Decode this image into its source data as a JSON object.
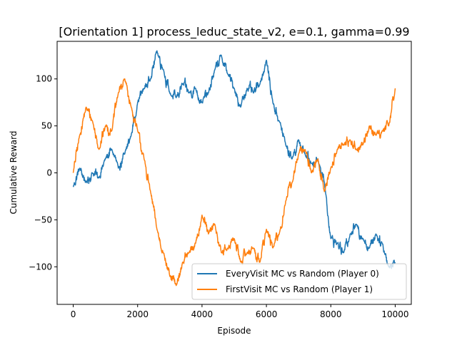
{
  "chart_data": {
    "type": "line",
    "title": "[Orientation 1] process_leduc_state_v2, e=0.1, gamma=0.99",
    "xlabel": "Episode",
    "ylabel": "Cumulative Reward",
    "xlim": [
      -500,
      10500
    ],
    "ylim": [
      -140,
      140
    ],
    "xticks": [
      0,
      2000,
      4000,
      6000,
      8000,
      10000
    ],
    "yticks": [
      -100,
      -50,
      0,
      50,
      100
    ],
    "xtick_labels": [
      "0",
      "2000",
      "4000",
      "6000",
      "8000",
      "10000"
    ],
    "ytick_labels": [
      "−100",
      "−50",
      "0",
      "50",
      "100"
    ],
    "grid": false,
    "legend_position": "lower-right",
    "series": [
      {
        "name": "EveryVisit MC vs Random (Player 0)",
        "color": "#1f77b4",
        "x": [
          0,
          200,
          400,
          600,
          800,
          1000,
          1200,
          1400,
          1600,
          1800,
          2000,
          2200,
          2400,
          2600,
          2800,
          3000,
          3200,
          3400,
          3600,
          3800,
          4000,
          4200,
          4400,
          4600,
          4800,
          5000,
          5200,
          5400,
          5600,
          5800,
          6000,
          6200,
          6400,
          6600,
          6800,
          7000,
          7200,
          7400,
          7600,
          7800,
          8000,
          8200,
          8400,
          8600,
          8800,
          9000,
          9200,
          9400,
          9600,
          9800,
          10000
        ],
        "y": [
          -15,
          5,
          -10,
          0,
          -5,
          15,
          25,
          5,
          20,
          40,
          75,
          90,
          100,
          130,
          110,
          85,
          80,
          95,
          85,
          90,
          75,
          85,
          110,
          125,
          105,
          90,
          70,
          90,
          85,
          95,
          120,
          75,
          55,
          30,
          15,
          35,
          20,
          10,
          15,
          -10,
          -70,
          -75,
          -85,
          -65,
          -55,
          -70,
          -80,
          -65,
          -75,
          -100,
          -95
        ]
      },
      {
        "name": "FirstVisit MC vs Random (Player 1)",
        "color": "#ff7f0e",
        "x": [
          0,
          200,
          400,
          600,
          800,
          1000,
          1200,
          1400,
          1600,
          1800,
          2000,
          2200,
          2400,
          2600,
          2800,
          3000,
          3200,
          3400,
          3600,
          3800,
          4000,
          4200,
          4400,
          4600,
          4800,
          5000,
          5200,
          5400,
          5600,
          5800,
          6000,
          6200,
          6400,
          6600,
          6800,
          7000,
          7200,
          7400,
          7600,
          7800,
          8000,
          8200,
          8400,
          8600,
          8800,
          9000,
          9200,
          9400,
          9600,
          9800,
          10000
        ],
        "y": [
          0,
          40,
          70,
          55,
          25,
          50,
          45,
          85,
          100,
          70,
          45,
          15,
          -20,
          -60,
          -85,
          -110,
          -120,
          -95,
          -85,
          -75,
          -45,
          -65,
          -55,
          -85,
          -80,
          -70,
          -95,
          -85,
          -80,
          -95,
          -60,
          -80,
          -65,
          -30,
          -10,
          20,
          25,
          0,
          15,
          -20,
          5,
          25,
          30,
          35,
          25,
          30,
          50,
          40,
          45,
          50,
          90
        ]
      }
    ]
  }
}
